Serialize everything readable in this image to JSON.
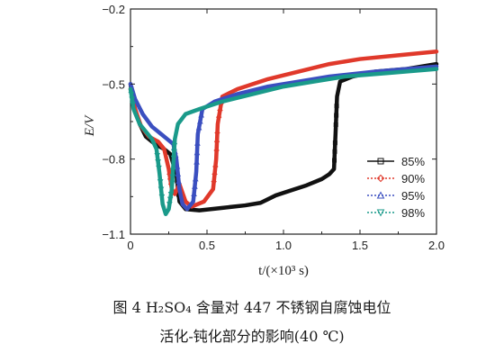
{
  "caption": {
    "line1": "图 4    H₂SO₄ 含量对 447 不锈钢自腐蚀电位",
    "line2": "活化-钝化部分的影响(40 ℃)"
  },
  "chart_data": {
    "type": "line",
    "title": "",
    "xlabel": "t/(×10³ s)",
    "ylabel": "E/V",
    "xlim": [
      0,
      2.0
    ],
    "ylim": [
      -1.1,
      -0.2
    ],
    "x_ticks": [
      "0",
      "0.5",
      "1.0",
      "1.5",
      "2.0"
    ],
    "y_ticks": [
      "−0.2",
      "−0.5",
      "−0.8",
      "−1.1"
    ],
    "grid": false,
    "legend_position": "right-center",
    "series": [
      {
        "name": "85%",
        "color": "#111111",
        "marker": "square",
        "points": [
          [
            0.0,
            -0.5
          ],
          [
            0.02,
            -0.58
          ],
          [
            0.06,
            -0.66
          ],
          [
            0.1,
            -0.71
          ],
          [
            0.16,
            -0.74
          ],
          [
            0.22,
            -0.76
          ],
          [
            0.26,
            -0.78
          ],
          [
            0.3,
            -0.86
          ],
          [
            0.32,
            -0.97
          ],
          [
            0.36,
            -1.0
          ],
          [
            0.45,
            -1.005
          ],
          [
            0.6,
            -0.995
          ],
          [
            0.75,
            -0.985
          ],
          [
            0.85,
            -0.975
          ],
          [
            0.95,
            -0.945
          ],
          [
            1.05,
            -0.925
          ],
          [
            1.15,
            -0.905
          ],
          [
            1.25,
            -0.88
          ],
          [
            1.3,
            -0.86
          ],
          [
            1.33,
            -0.84
          ],
          [
            1.34,
            -0.7
          ],
          [
            1.35,
            -0.55
          ],
          [
            1.37,
            -0.49
          ],
          [
            1.45,
            -0.47
          ],
          [
            1.6,
            -0.45
          ],
          [
            1.8,
            -0.44
          ],
          [
            2.0,
            -0.42
          ]
        ]
      },
      {
        "name": "90%",
        "color": "#e0392b",
        "marker": "diamond",
        "points": [
          [
            0.0,
            -0.52
          ],
          [
            0.03,
            -0.6
          ],
          [
            0.07,
            -0.67
          ],
          [
            0.12,
            -0.71
          ],
          [
            0.18,
            -0.73
          ],
          [
            0.22,
            -0.76
          ],
          [
            0.25,
            -0.84
          ],
          [
            0.27,
            -0.92
          ],
          [
            0.29,
            -0.94
          ],
          [
            0.32,
            -0.9
          ],
          [
            0.36,
            -0.97
          ],
          [
            0.4,
            -0.99
          ],
          [
            0.48,
            -0.97
          ],
          [
            0.54,
            -0.92
          ],
          [
            0.56,
            -0.8
          ],
          [
            0.57,
            -0.66
          ],
          [
            0.6,
            -0.55
          ],
          [
            0.7,
            -0.52
          ],
          [
            0.9,
            -0.48
          ],
          [
            1.1,
            -0.45
          ],
          [
            1.3,
            -0.42
          ],
          [
            1.5,
            -0.4
          ],
          [
            1.75,
            -0.385
          ],
          [
            2.0,
            -0.37
          ]
        ]
      },
      {
        "name": "95%",
        "color": "#3b4fc0",
        "marker": "triangle",
        "points": [
          [
            0.0,
            -0.5
          ],
          [
            0.03,
            -0.56
          ],
          [
            0.08,
            -0.62
          ],
          [
            0.14,
            -0.67
          ],
          [
            0.2,
            -0.7
          ],
          [
            0.24,
            -0.72
          ],
          [
            0.28,
            -0.74
          ],
          [
            0.3,
            -0.8
          ],
          [
            0.32,
            -0.92
          ],
          [
            0.34,
            -0.98
          ],
          [
            0.37,
            -1.0
          ],
          [
            0.41,
            -0.97
          ],
          [
            0.43,
            -0.85
          ],
          [
            0.44,
            -0.7
          ],
          [
            0.47,
            -0.6
          ],
          [
            0.55,
            -0.57
          ],
          [
            0.7,
            -0.54
          ],
          [
            0.9,
            -0.51
          ],
          [
            1.1,
            -0.49
          ],
          [
            1.3,
            -0.47
          ],
          [
            1.6,
            -0.45
          ],
          [
            2.0,
            -0.43
          ]
        ]
      },
      {
        "name": "98%",
        "color": "#1a9a8a",
        "marker": "inverted-triangle",
        "points": [
          [
            0.0,
            -0.52
          ],
          [
            0.02,
            -0.6
          ],
          [
            0.06,
            -0.66
          ],
          [
            0.1,
            -0.69
          ],
          [
            0.14,
            -0.72
          ],
          [
            0.17,
            -0.76
          ],
          [
            0.19,
            -0.86
          ],
          [
            0.21,
            -0.98
          ],
          [
            0.23,
            -1.02
          ],
          [
            0.25,
            -1.0
          ],
          [
            0.27,
            -0.92
          ],
          [
            0.28,
            -0.82
          ],
          [
            0.29,
            -0.72
          ],
          [
            0.31,
            -0.66
          ],
          [
            0.36,
            -0.62
          ],
          [
            0.45,
            -0.6
          ],
          [
            0.6,
            -0.57
          ],
          [
            0.8,
            -0.54
          ],
          [
            1.0,
            -0.51
          ],
          [
            1.2,
            -0.49
          ],
          [
            1.4,
            -0.47
          ],
          [
            1.7,
            -0.455
          ],
          [
            2.0,
            -0.44
          ]
        ]
      }
    ]
  }
}
